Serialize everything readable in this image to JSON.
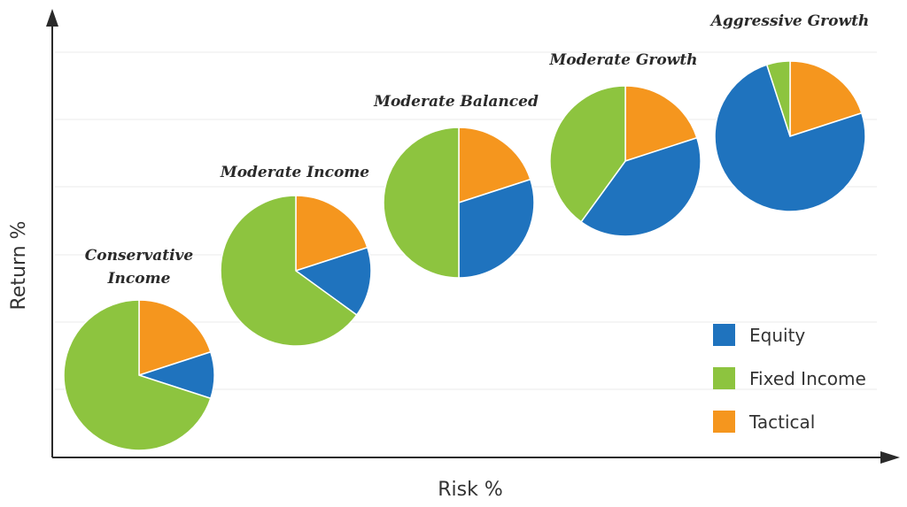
{
  "chart_data": {
    "type": "pie",
    "xlabel": "Risk %",
    "ylabel": "Return %",
    "grid": true,
    "legend_position": "bottom-right",
    "legend": [
      {
        "name": "Equity",
        "color": "#1f73be"
      },
      {
        "name": "Fixed Income",
        "color": "#8dc43f"
      },
      {
        "name": "Tactical",
        "color": "#f5961e"
      }
    ],
    "categories": [
      "Equity",
      "Fixed Income",
      "Tactical"
    ],
    "pies": [
      {
        "label": [
          "Conservative",
          "Income"
        ],
        "values": [
          10,
          70,
          20
        ]
      },
      {
        "label": [
          "Moderate Income"
        ],
        "values": [
          15,
          65,
          20
        ]
      },
      {
        "label": [
          "Moderate Balanced"
        ],
        "values": [
          30,
          50,
          20
        ]
      },
      {
        "label": [
          "Moderate Growth"
        ],
        "values": [
          40,
          40,
          20
        ]
      },
      {
        "label": [
          "Aggressive Growth"
        ],
        "values": [
          75,
          5,
          20
        ]
      }
    ]
  }
}
